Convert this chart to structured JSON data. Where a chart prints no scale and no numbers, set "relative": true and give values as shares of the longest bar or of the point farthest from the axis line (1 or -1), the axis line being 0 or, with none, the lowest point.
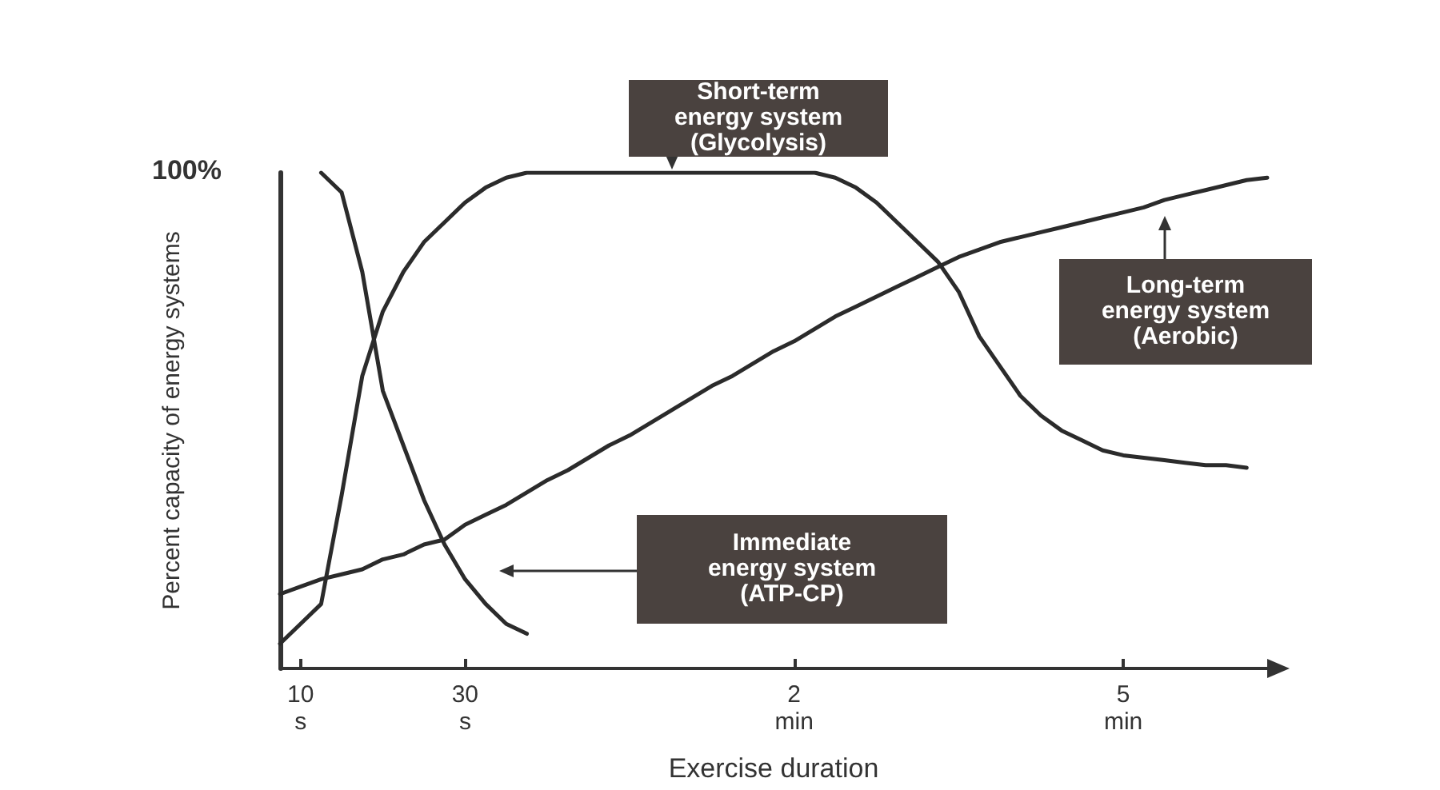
{
  "chart_data": {
    "type": "line",
    "relative": true,
    "xlabel": "Exercise duration",
    "ylabel": "Percent capacity of energy systems",
    "categories": [
      null,
      "10\ns",
      null,
      null,
      null,
      null,
      null,
      null,
      null,
      "30\ns",
      null,
      null,
      null,
      null,
      null,
      null,
      null,
      null,
      null,
      null,
      null,
      null,
      null,
      null,
      null,
      "2\nmin",
      null,
      null,
      null,
      null,
      null,
      null,
      null,
      null,
      null,
      null,
      null,
      null,
      null,
      null,
      null,
      "5\nmin",
      null,
      null,
      null,
      null,
      null,
      null,
      null
    ],
    "series": [
      {
        "color": "#2b2b2b",
        "values": [
          null,
          null,
          1.0,
          0.96,
          0.8,
          0.56,
          0.45,
          0.34,
          0.25,
          0.18,
          0.13,
          0.09,
          0.07,
          null,
          null,
          null,
          null,
          null,
          null,
          null,
          null,
          null,
          null,
          null,
          null,
          null,
          null,
          null,
          null,
          null,
          null,
          null,
          null,
          null,
          null,
          null,
          null,
          null,
          null,
          null,
          null,
          null,
          null,
          null,
          null,
          null,
          null,
          null,
          null
        ]
      },
      {
        "color": "#2b2b2b",
        "values": [
          0.05,
          0.09,
          0.13,
          0.35,
          0.59,
          0.72,
          0.8,
          0.86,
          0.9,
          0.94,
          0.97,
          0.99,
          1.0,
          1.0,
          1.0,
          1.0,
          1.0,
          1.0,
          1.0,
          1.0,
          1.0,
          1.0,
          1.0,
          1.0,
          1.0,
          1.0,
          1.0,
          0.99,
          0.97,
          0.94,
          0.9,
          0.86,
          0.82,
          0.76,
          0.67,
          0.61,
          0.55,
          0.51,
          0.48,
          0.46,
          0.44,
          0.43,
          0.425,
          0.42,
          0.415,
          0.41,
          0.41,
          0.405,
          null
        ]
      },
      {
        "color": "#2b2b2b",
        "values": [
          0.15,
          0.165,
          0.18,
          0.19,
          0.2,
          0.22,
          0.23,
          0.25,
          0.26,
          0.29,
          0.31,
          0.33,
          0.355,
          0.38,
          0.4,
          0.425,
          0.45,
          0.47,
          0.495,
          0.52,
          0.545,
          0.57,
          0.59,
          0.615,
          0.64,
          0.66,
          0.685,
          0.71,
          0.73,
          0.75,
          0.77,
          0.79,
          0.81,
          0.83,
          0.845,
          0.86,
          0.87,
          0.88,
          0.89,
          0.9,
          0.91,
          0.92,
          0.93,
          0.945,
          0.955,
          0.965,
          0.975,
          0.985,
          0.99
        ]
      }
    ],
    "annotations": [
      "100%",
      "Short-term\nenergy system\n(Glycolysis)",
      "Long-term\nenergy system\n(Aerobic)",
      "Immediate\nenergy system\n(ATP-CP)"
    ]
  }
}
